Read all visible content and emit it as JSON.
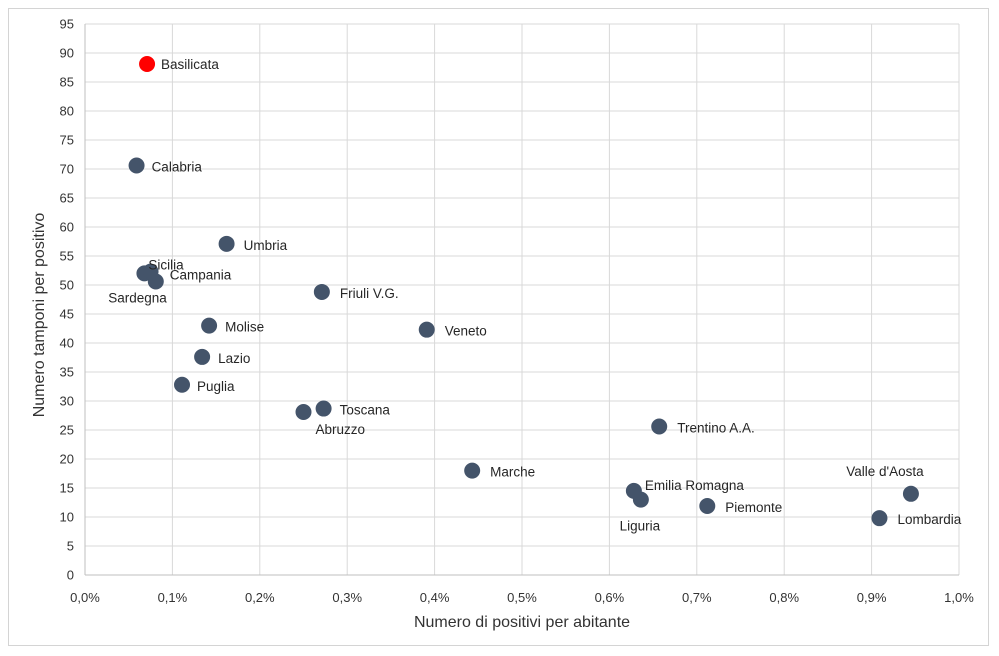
{
  "chart_data": {
    "type": "scatter",
    "xlabel": "Numero di positivi per abitante",
    "ylabel": "Numero tamponi per positivo",
    "xlim": [
      0,
      0.01
    ],
    "ylim": [
      0,
      95
    ],
    "x_ticks": [
      "0,0%",
      "0,1%",
      "0,2%",
      "0,3%",
      "0,4%",
      "0,5%",
      "0,6%",
      "0,7%",
      "0,8%",
      "0,9%",
      "1,0%"
    ],
    "y_ticks": [
      "0",
      "5",
      "10",
      "15",
      "20",
      "25",
      "30",
      "35",
      "40",
      "45",
      "50",
      "55",
      "60",
      "65",
      "70",
      "75",
      "80",
      "85",
      "90",
      "95"
    ],
    "grid": true,
    "point_color": "#44546a",
    "highlight_color": "#ff0000",
    "points": [
      {
        "label": "Basilicata",
        "x": 0.00071,
        "y": 88.1,
        "highlight": true
      },
      {
        "label": "Calabria",
        "x": 0.00059,
        "y": 70.6
      },
      {
        "label": "Umbria",
        "x": 0.00162,
        "y": 57.1
      },
      {
        "label": "Sicilia",
        "x": 0.00068,
        "y": 52.0
      },
      {
        "label": "Campania",
        "x": 0.00081,
        "y": 50.6
      },
      {
        "label": "Sardegna",
        "x": 0.00075,
        "y": 52.3
      },
      {
        "label": "Friuli V.G.",
        "x": 0.00271,
        "y": 48.8
      },
      {
        "label": "Molise",
        "x": 0.00142,
        "y": 43.0
      },
      {
        "label": "Veneto",
        "x": 0.00391,
        "y": 42.3
      },
      {
        "label": "Lazio",
        "x": 0.00134,
        "y": 37.6
      },
      {
        "label": "Puglia",
        "x": 0.00111,
        "y": 32.8
      },
      {
        "label": "Toscana",
        "x": 0.00273,
        "y": 28.7
      },
      {
        "label": "Abruzzo",
        "x": 0.0025,
        "y": 28.1
      },
      {
        "label": "Marche",
        "x": 0.00443,
        "y": 18.0
      },
      {
        "label": "Trentino A.A.",
        "x": 0.00657,
        "y": 25.6
      },
      {
        "label": "Emilia Romagna",
        "x": 0.00628,
        "y": 14.5
      },
      {
        "label": "Liguria",
        "x": 0.00636,
        "y": 13.0
      },
      {
        "label": "Piemonte",
        "x": 0.00712,
        "y": 11.9
      },
      {
        "label": "Valle d'Aosta",
        "x": 0.00945,
        "y": 14.0
      },
      {
        "label": "Lombardia",
        "x": 0.00909,
        "y": 9.8
      }
    ]
  }
}
